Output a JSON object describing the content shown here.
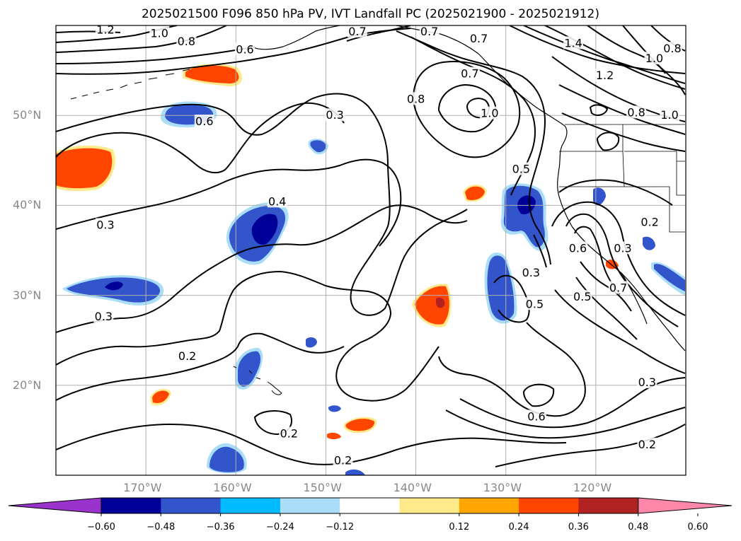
{
  "title": "2025021500 F096 850 hPa PV, IVT Landfall PC (2025021900 - 2025021912)",
  "lat_ticks": [
    {
      "label": "50°N",
      "lat": 50
    },
    {
      "label": "40°N",
      "lat": 40
    },
    {
      "label": "30°N",
      "lat": 30
    },
    {
      "label": "20°N",
      "lat": 20
    }
  ],
  "lon_ticks": [
    {
      "label": "170°W",
      "lon": -170
    },
    {
      "label": "160°W",
      "lon": -160
    },
    {
      "label": "150°W",
      "lon": -150
    },
    {
      "label": "140°W",
      "lon": -140
    },
    {
      "label": "130°W",
      "lon": -130
    },
    {
      "label": "120°W",
      "lon": -120
    }
  ],
  "map_extent": {
    "lon_min": -180,
    "lon_max": -110,
    "lat_min": 10,
    "lat_max": 60
  },
  "colorbar": {
    "ticks": [
      "−0.60",
      "−0.48",
      "−0.36",
      "−0.24",
      "−0.12",
      "0.12",
      "0.24",
      "0.36",
      "0.48",
      "0.60"
    ],
    "colors": [
      "#9933cc",
      "#000099",
      "#3355cc",
      "#00bbff",
      "#aaddf8",
      "#ffffff",
      "#ffe98a",
      "#ffa500",
      "#ff4500",
      "#b22222",
      "#ff88aa"
    ]
  },
  "contour_labels": [
    {
      "text": "1.2",
      "lon": -174.5,
      "lat": 59.5
    },
    {
      "text": "1.0",
      "lon": -168.5,
      "lat": 59.1
    },
    {
      "text": "0.8",
      "lon": -165.5,
      "lat": 58.2
    },
    {
      "text": "0.6",
      "lon": -159.0,
      "lat": 57.3
    },
    {
      "text": "0.7",
      "lon": -146.5,
      "lat": 59.3
    },
    {
      "text": "0.7",
      "lon": -138.5,
      "lat": 59.3
    },
    {
      "text": "0.7",
      "lon": -133.0,
      "lat": 58.5
    },
    {
      "text": "0.7",
      "lon": -134.0,
      "lat": 54.6
    },
    {
      "text": "0.8",
      "lon": -140.0,
      "lat": 51.8
    },
    {
      "text": "1.0",
      "lon": -131.8,
      "lat": 50.2
    },
    {
      "text": "0.6",
      "lon": -163.5,
      "lat": 49.3
    },
    {
      "text": "0.3",
      "lon": -149.0,
      "lat": 50.0
    },
    {
      "text": "1.4",
      "lon": -122.5,
      "lat": 58.0
    },
    {
      "text": "1.2",
      "lon": -119.0,
      "lat": 54.4
    },
    {
      "text": "1.0",
      "lon": -113.5,
      "lat": 56.3
    },
    {
      "text": "0.8",
      "lon": -111.5,
      "lat": 57.4
    },
    {
      "text": "0.8",
      "lon": -115.5,
      "lat": 50.3
    },
    {
      "text": "1.0",
      "lon": -111.8,
      "lat": 50.0
    },
    {
      "text": "0.5",
      "lon": -128.3,
      "lat": 44.0
    },
    {
      "text": "0.4",
      "lon": -155.4,
      "lat": 40.4
    },
    {
      "text": "0.3",
      "lon": -174.5,
      "lat": 37.8
    },
    {
      "text": "0.2",
      "lon": -114.0,
      "lat": 38.1
    },
    {
      "text": "0.6",
      "lon": -122.0,
      "lat": 35.2
    },
    {
      "text": "0.3",
      "lon": -117.0,
      "lat": 35.2
    },
    {
      "text": "0.3",
      "lon": -127.2,
      "lat": 32.5
    },
    {
      "text": "0.7",
      "lon": -117.5,
      "lat": 30.8
    },
    {
      "text": "0.5",
      "lon": -121.5,
      "lat": 29.8
    },
    {
      "text": "0.5",
      "lon": -126.8,
      "lat": 29.0
    },
    {
      "text": "0.3",
      "lon": -174.7,
      "lat": 27.6
    },
    {
      "text": "0.2",
      "lon": -165.4,
      "lat": 23.2
    },
    {
      "text": "0.3",
      "lon": -114.3,
      "lat": 20.3
    },
    {
      "text": "0.6",
      "lon": -126.6,
      "lat": 16.5
    },
    {
      "text": "0.2",
      "lon": -154.1,
      "lat": 14.6
    },
    {
      "text": "0.2",
      "lon": -148.1,
      "lat": 11.6
    },
    {
      "text": "0.2",
      "lon": -114.3,
      "lat": 13.4
    }
  ]
}
